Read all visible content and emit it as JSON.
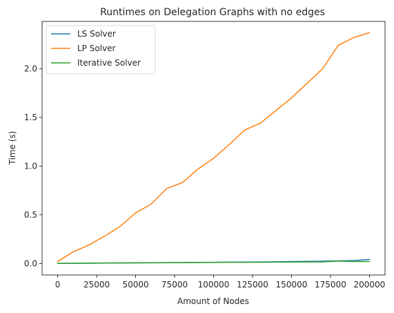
{
  "chart_data": {
    "type": "line",
    "title": "Runtimes on Delegation Graphs with no edges",
    "xlabel": "Amount of Nodes",
    "ylabel": "Time (s)",
    "xlim": [
      -10000,
      210000
    ],
    "ylim": [
      -0.118,
      2.485
    ],
    "xticks": [
      0,
      25000,
      50000,
      75000,
      100000,
      125000,
      150000,
      175000,
      200000
    ],
    "yticks": [
      0.0,
      0.5,
      1.0,
      1.5,
      2.0
    ],
    "xtick_labels": [
      "0",
      "25000",
      "50000",
      "75000",
      "100000",
      "125000",
      "150000",
      "175000",
      "200000"
    ],
    "ytick_labels": [
      "0.0",
      "0.5",
      "1.0",
      "1.5",
      "2.0"
    ],
    "grid": false,
    "legend_position": "top-left",
    "x": [
      0,
      10000,
      20000,
      30000,
      40000,
      50000,
      60000,
      70000,
      80000,
      90000,
      100000,
      110000,
      120000,
      130000,
      140000,
      150000,
      160000,
      170000,
      180000,
      190000,
      200000
    ],
    "series": [
      {
        "name": "LS Solver",
        "color": "#1f77b4",
        "values": [
          0.002,
          0.003,
          0.004,
          0.005,
          0.006,
          0.007,
          0.008,
          0.009,
          0.01,
          0.011,
          0.012,
          0.014,
          0.015,
          0.016,
          0.018,
          0.02,
          0.022,
          0.024,
          0.027,
          0.03,
          0.042
        ]
      },
      {
        "name": "LP Solver",
        "color": "#ff7f0e",
        "values": [
          0.02,
          0.12,
          0.19,
          0.28,
          0.38,
          0.52,
          0.61,
          0.77,
          0.83,
          0.97,
          1.08,
          1.22,
          1.37,
          1.44,
          1.57,
          1.7,
          1.85,
          2.0,
          2.24,
          2.32,
          2.37
        ]
      },
      {
        "name": "Iterative Solver",
        "color": "#2ca02c",
        "values": [
          0.001,
          0.002,
          0.003,
          0.004,
          0.005,
          0.006,
          0.007,
          0.008,
          0.009,
          0.01,
          0.011,
          0.012,
          0.012,
          0.013,
          0.014,
          0.015,
          0.016,
          0.017,
          0.025,
          0.02,
          0.02
        ]
      }
    ]
  }
}
